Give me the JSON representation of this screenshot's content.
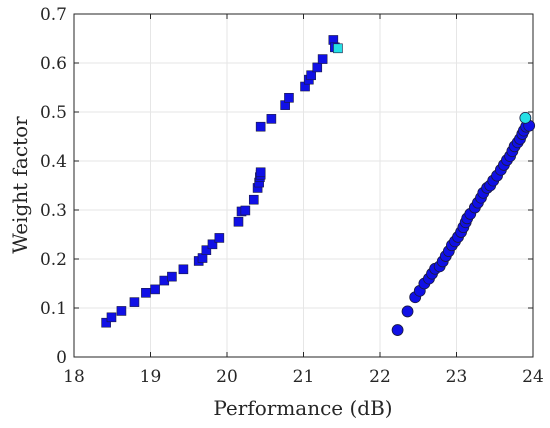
{
  "chart_data": {
    "type": "scatter",
    "title": "",
    "xlabel": "Performance (dB)",
    "ylabel": "Weight factor",
    "xlim": [
      18,
      24
    ],
    "ylim": [
      0,
      0.7
    ],
    "xticks": [
      "18",
      "19",
      "20",
      "21",
      "22",
      "23",
      "24"
    ],
    "yticks": [
      "0",
      "0.1",
      "0.2",
      "0.3",
      "0.4",
      "0.5",
      "0.6",
      "0.7"
    ],
    "grid": true,
    "legend": "none",
    "series": [
      {
        "marker": "square",
        "color": "#1010e6",
        "x": [
          18.42,
          18.49,
          18.62,
          18.79,
          18.94,
          19.06,
          19.18,
          19.28,
          19.43,
          19.63,
          19.68,
          19.73,
          19.81,
          19.9,
          20.15,
          20.19,
          20.24,
          20.35,
          20.4,
          20.42,
          20.43,
          20.44,
          20.44,
          20.44,
          20.58,
          20.76,
          20.81,
          21.02,
          21.07,
          21.1,
          21.18,
          21.25,
          21.39,
          21.41
        ],
        "y": [
          0.07,
          0.081,
          0.094,
          0.112,
          0.131,
          0.138,
          0.156,
          0.164,
          0.179,
          0.196,
          0.202,
          0.218,
          0.23,
          0.243,
          0.276,
          0.297,
          0.299,
          0.321,
          0.345,
          0.356,
          0.367,
          0.372,
          0.377,
          0.47,
          0.486,
          0.514,
          0.529,
          0.552,
          0.566,
          0.575,
          0.591,
          0.608,
          0.647,
          0.632
        ]
      },
      {
        "marker": "square",
        "color": "#26e0e6",
        "x": [
          21.45
        ],
        "y": [
          0.63
        ]
      },
      {
        "marker": "circle",
        "color": "#1010e6",
        "x": [
          22.23,
          22.36,
          22.46,
          22.52,
          22.58,
          22.64,
          22.68,
          22.72,
          22.78,
          22.82,
          22.86,
          22.9,
          22.94,
          22.98,
          23.02,
          23.06,
          23.09,
          23.12,
          23.14,
          23.18,
          23.24,
          23.28,
          23.32,
          23.35,
          23.4,
          23.44,
          23.48,
          23.53,
          23.58,
          23.62,
          23.66,
          23.7,
          23.73,
          23.76,
          23.8,
          23.83,
          23.86,
          23.88,
          23.91,
          23.95
        ],
        "y": [
          0.055,
          0.093,
          0.122,
          0.135,
          0.15,
          0.16,
          0.17,
          0.18,
          0.185,
          0.195,
          0.206,
          0.216,
          0.228,
          0.236,
          0.245,
          0.255,
          0.265,
          0.275,
          0.283,
          0.292,
          0.305,
          0.315,
          0.325,
          0.335,
          0.345,
          0.35,
          0.36,
          0.37,
          0.382,
          0.392,
          0.402,
          0.41,
          0.42,
          0.43,
          0.438,
          0.445,
          0.455,
          0.462,
          0.47,
          0.472
        ]
      },
      {
        "marker": "circle",
        "color": "#26e0e6",
        "x": [
          23.9
        ],
        "y": [
          0.488
        ]
      }
    ]
  }
}
